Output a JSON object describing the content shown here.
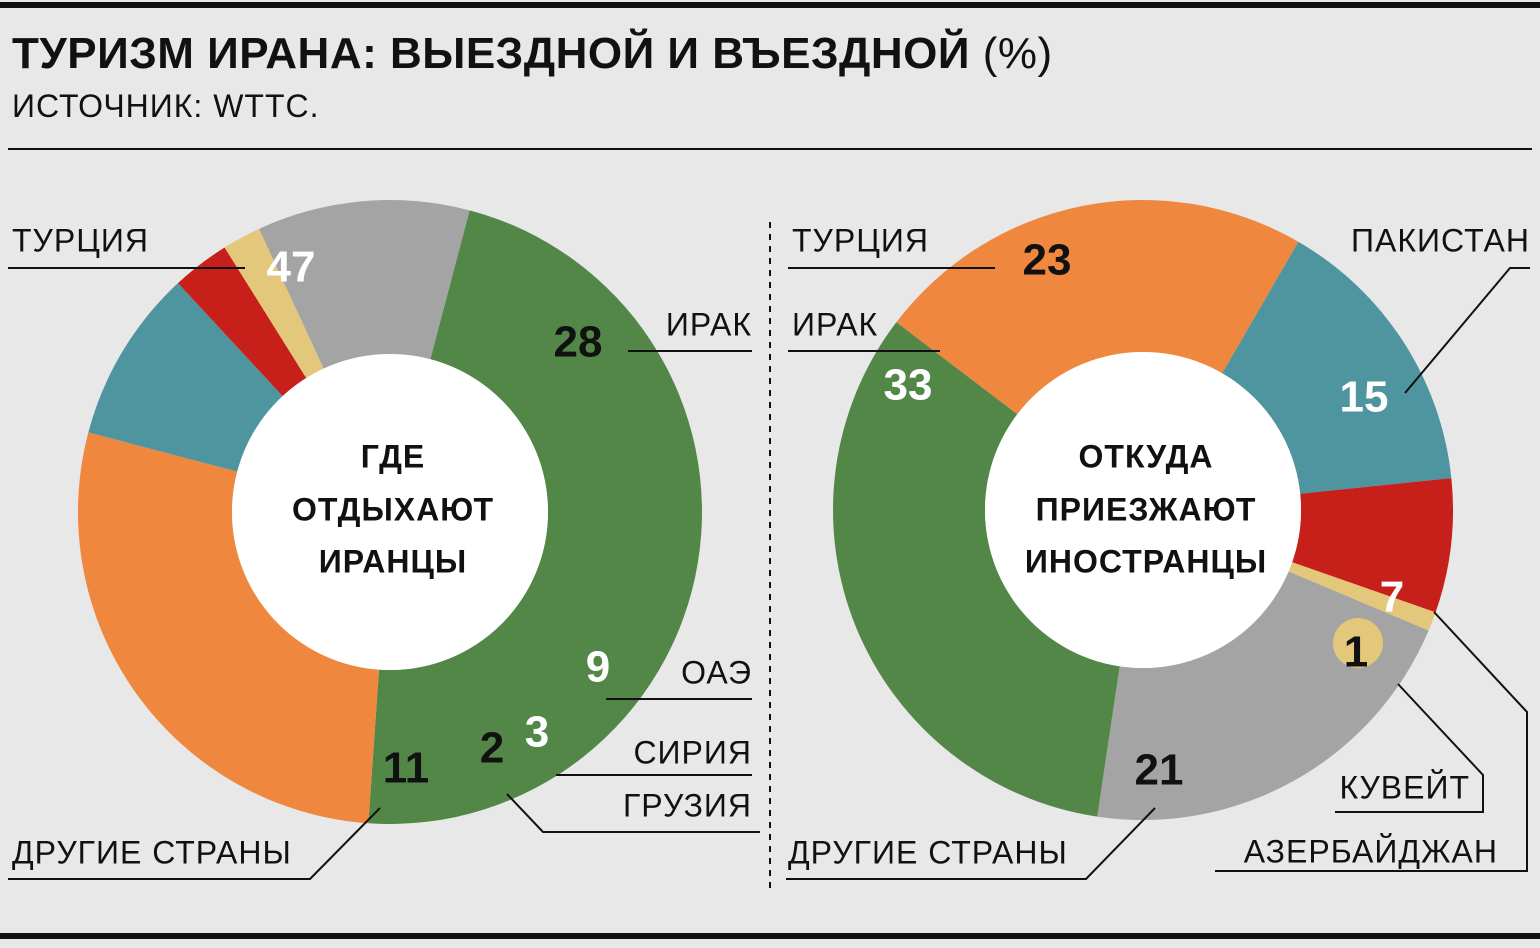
{
  "header": {
    "title_bold": "ТУРИЗМ ИРАНА: ВЫЕЗДНОЙ И ВЪЕЗДНОЙ",
    "title_unit": "(%)",
    "source": "ИСТОЧНИК: WTTC."
  },
  "colors": {
    "green": "#538748",
    "orange": "#ef873f",
    "teal": "#4f95a0",
    "red": "#c71f1a",
    "yellow": "#e3c77a",
    "gray": "#a4a4a4",
    "background": "#e8e8e8",
    "hole": "#ffffff"
  },
  "chart_data": [
    {
      "type": "pie",
      "center_label": [
        "ГДЕ",
        "ОТДЫХАЮТ",
        "ИРАНЦЫ"
      ],
      "slices": [
        {
          "label": "ТУРЦИЯ",
          "value": 47,
          "color": "#538748",
          "value_color": "#ffffff"
        },
        {
          "label": "ИРАК",
          "value": 28,
          "color": "#ef873f",
          "value_color": "#111111"
        },
        {
          "label": "ОАЭ",
          "value": 9,
          "color": "#4f95a0",
          "value_color": "#ffffff"
        },
        {
          "label": "СИРИЯ",
          "value": 3,
          "color": "#c71f1a",
          "value_color": "#ffffff"
        },
        {
          "label": "ГРУЗИЯ",
          "value": 2,
          "color": "#e3c77a",
          "value_color": "#111111"
        },
        {
          "label": "ДРУГИЕ СТРАНЫ",
          "value": 11,
          "color": "#a4a4a4",
          "value_color": "#111111"
        }
      ]
    },
    {
      "type": "pie",
      "center_label": [
        "ОТКУДА",
        "ПРИЕЗЖАЮТ",
        "ИНОСТРАНЦЫ"
      ],
      "slices": [
        {
          "label": "ТУРЦИЯ",
          "value": 23,
          "color": "#ef873f",
          "value_color": "#111111"
        },
        {
          "label": "ПАКИСТАН",
          "value": 15,
          "color": "#4f95a0",
          "value_color": "#ffffff"
        },
        {
          "label": "КУВЕЙТ",
          "value": 7,
          "color": "#c71f1a",
          "value_color": "#ffffff"
        },
        {
          "label": "АЗЕРБАЙДЖАН",
          "value": 1,
          "color": "#e3c77a",
          "value_color": "#111111"
        },
        {
          "label": "ДРУГИЕ СТРАНЫ",
          "value": 21,
          "color": "#a4a4a4",
          "value_color": "#111111"
        },
        {
          "label": "ИРАК",
          "value": 33,
          "color": "#538748",
          "value_color": "#ffffff"
        }
      ]
    }
  ]
}
